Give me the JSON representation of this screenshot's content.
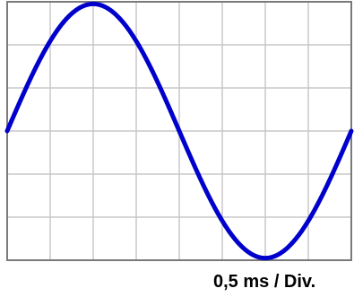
{
  "chart_data": {
    "type": "line",
    "title": "",
    "xlabel": "0,5 ms / Div.",
    "ylabel": "",
    "grid": true,
    "divisions": {
      "x": 8,
      "y": 6
    },
    "xlim": [
      0,
      8
    ],
    "ylim": [
      -3,
      3
    ],
    "series": [
      {
        "color": "#0000cc",
        "waveform": "sine",
        "amplitude": 2.95,
        "period": 8,
        "phase_deg": 0,
        "offset": 0
      }
    ]
  },
  "colors": {
    "background": "#ffffff",
    "screen": "#ffffff",
    "grid": "#c8c8c8",
    "frame": "#7a7a7a",
    "trace": "#0000cc"
  }
}
